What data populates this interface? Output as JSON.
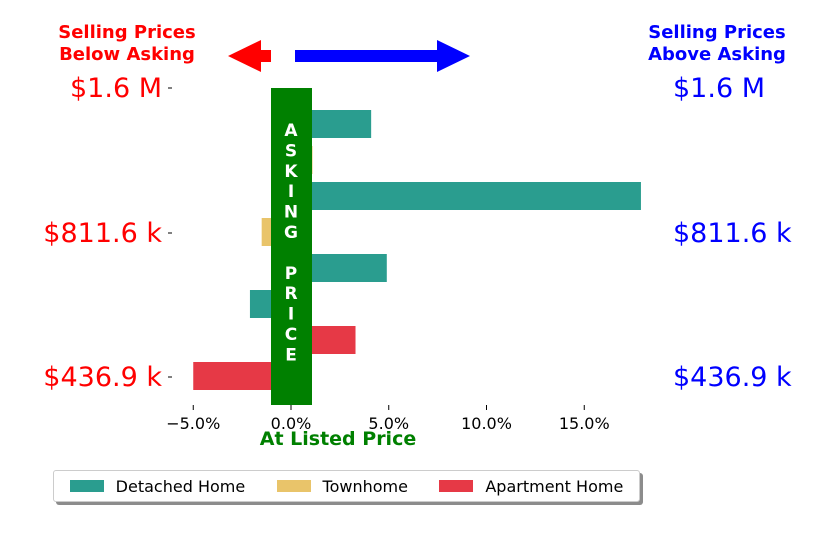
{
  "headers": {
    "left": [
      "Selling Prices",
      "Below Asking"
    ],
    "right": [
      "Selling Prices",
      "Above Asking"
    ],
    "left_color": "#ff0000",
    "right_color": "#0000ff"
  },
  "arrows": {
    "left_color": "#ff0000",
    "right_color": "#0000ff"
  },
  "banner": {
    "letters": [
      "A",
      "S",
      "K",
      "I",
      "N",
      "G",
      "",
      "P",
      "R",
      "I",
      "C",
      "E"
    ],
    "color": "#008000"
  },
  "price_labels": [
    "$1.6 M",
    "$811.6 k",
    "$436.9 k"
  ],
  "xlabel": "At Listed Price",
  "legend": {
    "items": [
      {
        "label": "Detached Home",
        "color": "#2a9d8f"
      },
      {
        "label": "Townhome",
        "color": "#e9c46a"
      },
      {
        "label": "Apartment Home",
        "color": "#e63946"
      }
    ]
  },
  "chart_data": {
    "type": "bar",
    "orientation": "horizontal",
    "categories": [
      "$1.6 M",
      "$811.6 k",
      "$436.9 k"
    ],
    "series": [
      {
        "name": "Detached Home",
        "color": "#2a9d8f",
        "values": [
          4.1,
          4.9,
          -2.1
        ]
      },
      {
        "name": "Townhome",
        "color": "#e9c46a",
        "values": [
          1.1,
          -1.5,
          0.0
        ]
      },
      {
        "name": "Apartment Home",
        "color": "#e63946",
        "values": [
          17.9,
          3.3,
          -5.0
        ]
      }
    ],
    "bar_colors_by_row": [
      [
        "#2a9d8f",
        "#e9c46a",
        "#2a9d8f"
      ],
      [
        "#e9c46a",
        "#2a9d8f",
        "#2a9d8f"
      ],
      [
        "#e63946",
        "#e63946",
        "#e63946"
      ]
    ],
    "bar_values_by_row": [
      [
        4.1,
        1.1,
        17.9
      ],
      [
        -1.5,
        4.9,
        -2.1
      ],
      [
        3.3,
        -5.0,
        0.0
      ]
    ],
    "xticks": [
      -5,
      0,
      5,
      10,
      15
    ],
    "xtick_labels": [
      "−5.0%",
      "0.0%",
      "5.0%",
      "10.0%",
      "15.0%"
    ],
    "xlim": [
      -6.1,
      18
    ],
    "xlabel": "At Listed Price",
    "grid": false,
    "legend_position": "bottom"
  }
}
